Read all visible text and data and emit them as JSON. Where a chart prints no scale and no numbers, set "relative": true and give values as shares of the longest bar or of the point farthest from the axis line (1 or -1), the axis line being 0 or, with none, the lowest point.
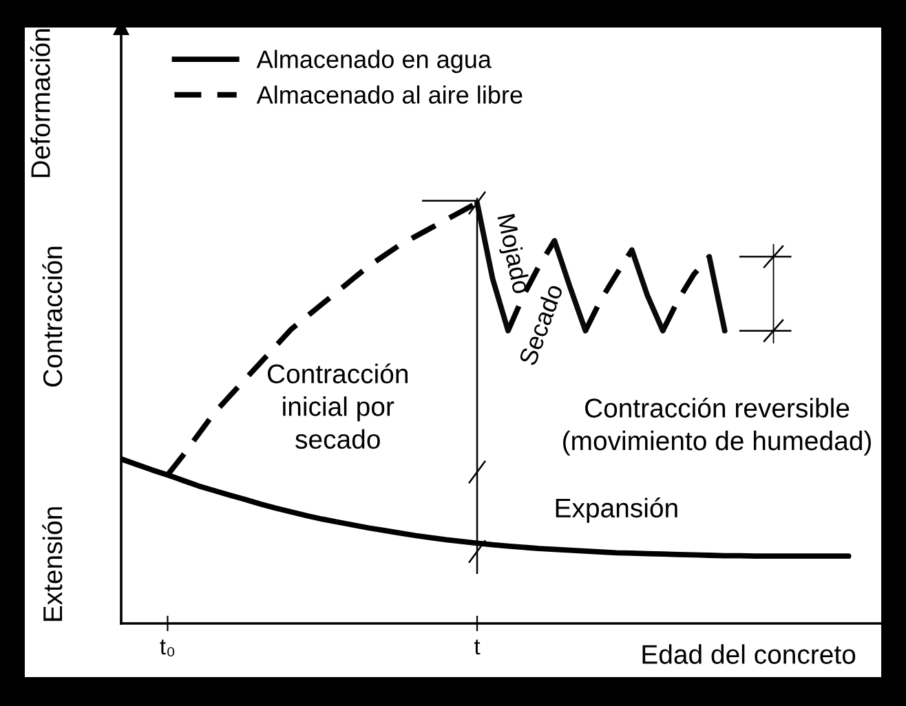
{
  "chart_data": {
    "type": "line",
    "relative": true,
    "xlabel": "Edad del concreto",
    "ylabel": "Deformación",
    "categories": [
      null,
      null,
      null,
      "t₀",
      null,
      null,
      null,
      null,
      null,
      null,
      null,
      null,
      null,
      null,
      null,
      null,
      null,
      null,
      null,
      null,
      null,
      null,
      null,
      "t",
      null,
      null,
      null,
      null,
      null,
      null,
      null,
      null,
      null,
      null,
      null,
      null,
      null,
      null,
      null,
      null,
      null,
      null,
      null,
      null,
      null,
      null,
      null,
      null,
      null,
      null,
      null
    ],
    "legend": "top left",
    "series": [
      {
        "name": "Almacenado en agua",
        "color": "#000000",
        "line_style": "solid",
        "values": [
          0.391,
          0.378,
          0.365,
          0.353,
          0.34,
          0.327,
          0.316,
          0.305,
          0.295,
          0.284,
          0.274,
          0.265,
          0.256,
          0.248,
          0.241,
          0.234,
          0.227,
          0.221,
          0.215,
          0.209,
          0.204,
          0.199,
          0.195,
          0.191,
          0.187,
          0.184,
          0.181,
          0.178,
          0.176,
          0.174,
          0.172,
          0.17,
          0.168,
          0.167,
          0.166,
          0.165,
          0.164,
          0.163,
          0.162,
          0.161,
          0.161,
          0.16,
          0.16,
          0.16,
          0.16,
          0.16,
          0.16,
          0.16,
          null,
          null,
          null
        ]
      },
      {
        "name": "Almacenado al aire libre",
        "color": "#000000",
        "line_style": "dashed",
        "values": [
          null,
          null,
          null,
          0.353,
          0.4,
          0.45,
          0.5,
          0.54,
          0.58,
          0.62,
          0.66,
          0.7,
          0.73,
          0.76,
          0.79,
          0.82,
          0.85,
          0.875,
          0.9,
          0.92,
          0.94,
          0.96,
          0.98,
          1.0,
          null,
          0.696,
          0.78,
          0.85,
          0.91,
          null,
          0.696,
          0.77,
          0.83,
          0.888,
          null,
          0.696,
          0.77,
          0.83,
          0.872,
          null,
          null,
          null,
          null,
          null,
          null,
          null,
          null,
          null,
          null,
          null,
          null
        ]
      },
      {
        "color": "#0a0a0a",
        "line_style": "solid",
        "values": [
          null,
          null,
          null,
          null,
          null,
          null,
          null,
          null,
          null,
          null,
          null,
          null,
          null,
          null,
          null,
          null,
          null,
          null,
          null,
          null,
          null,
          null,
          null,
          1.0,
          0.82,
          0.696,
          null,
          null,
          0.91,
          0.8,
          0.696,
          null,
          null,
          0.888,
          0.78,
          0.696,
          null,
          null,
          0.872,
          0.696,
          null,
          null,
          null,
          null,
          null,
          null,
          null,
          null,
          null,
          null,
          null
        ]
      }
    ],
    "annotations": [
      "Contracción",
      "Extensión",
      "Mojado",
      "Secado",
      "Contracción\ninicial por\nsecado",
      "Expansión",
      "Contracción reversible\n(movimiento de humedad)"
    ]
  }
}
